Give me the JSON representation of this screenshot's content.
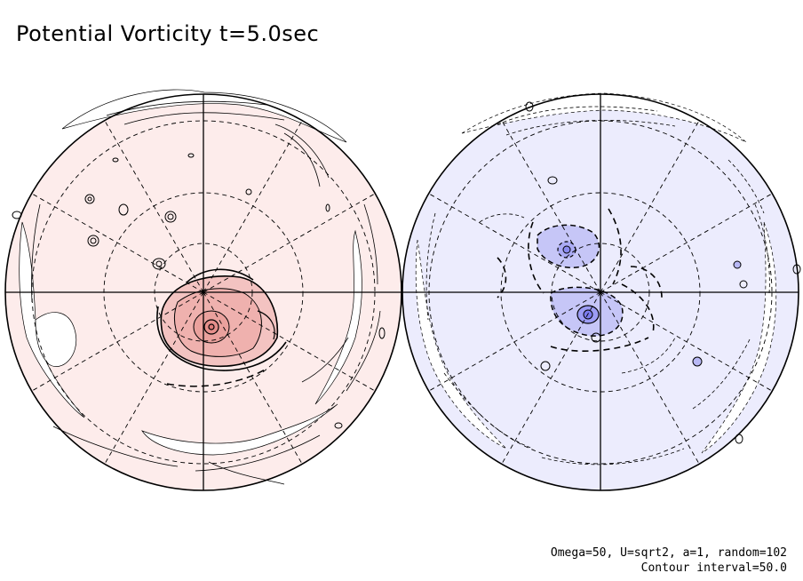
{
  "chart_data": {
    "type": "contour",
    "title": "Potential Vorticity t=5.0sec",
    "projection": "orthographic polar hemispheres",
    "panels": [
      {
        "name": "north-hemisphere",
        "fill_color": "#fdeceb",
        "core_color": "#f3c3c1",
        "contour_color": "#000000"
      },
      {
        "name": "south-hemisphere",
        "fill_color": "#ececfd",
        "core_color": "#9c9cf4",
        "contour_color": "#000000"
      }
    ],
    "annotations": [
      "Omega=50, U=sqrt2, a=1, random=102",
      "Contour interval=50.0"
    ],
    "contour_interval": 50.0,
    "grid": true
  }
}
